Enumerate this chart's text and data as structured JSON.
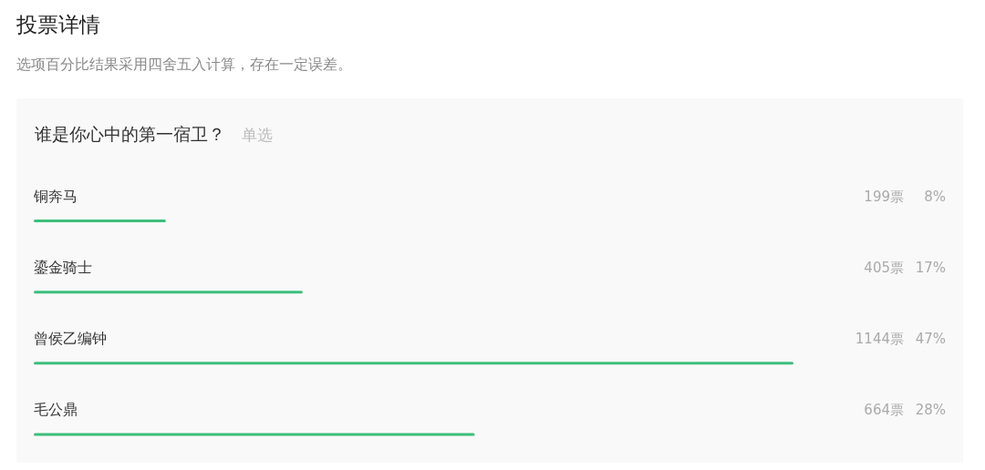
{
  "chart_data": {
    "type": "bar",
    "orientation": "horizontal",
    "title": "投票详情",
    "subtitle": "选项百分比结果采用四舍五入计算，存在一定误差。",
    "categories": [
      "铜奔马",
      "鎏金骑士",
      "曾侯乙编钟",
      "毛公鼎"
    ],
    "values": [
      199,
      405,
      1144,
      664
    ],
    "value_labels": [
      "199票",
      "405票",
      "1144票",
      "664票"
    ],
    "color": "#3dbf7b",
    "annotations": [
      "谁是你心中的第一宿卫？",
      "单选",
      "8%",
      "17%",
      "47%",
      "28%"
    ]
  }
}
